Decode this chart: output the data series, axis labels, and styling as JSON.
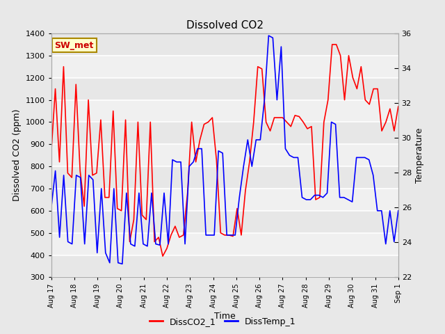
{
  "title": "Dissolved CO2",
  "xlabel": "Time",
  "ylabel_left": "Dissolved CO2 (ppm)",
  "ylabel_right": "Temperature",
  "ylim_left": [
    300,
    1400
  ],
  "ylim_right": [
    22,
    36
  ],
  "bg_color": "#e8e8e8",
  "plot_bg_color": "#f0f0f0",
  "legend_label_red": "DissCO2_1",
  "legend_label_blue": "DissTemp_1",
  "annotation_text": "SW_met",
  "annotation_bg": "#ffffcc",
  "annotation_border": "#aa8800",
  "annotation_text_color": "#cc0000",
  "x_tick_labels": [
    "Aug 17",
    "Aug 18",
    "Aug 19",
    "Aug 20",
    "Aug 21",
    "Aug 22",
    "Aug 23",
    "Aug 24",
    "Aug 25",
    "Aug 26",
    "Aug 27",
    "Aug 28",
    "Aug 29",
    "Aug 30",
    "Aug 31",
    "Sep 1"
  ],
  "red_y": [
    860,
    1150,
    820,
    1250,
    770,
    750,
    1170,
    780,
    620,
    1100,
    760,
    770,
    1010,
    660,
    660,
    1050,
    610,
    600,
    1010,
    460,
    560,
    1000,
    580,
    560,
    1000,
    460,
    480,
    395,
    430,
    490,
    530,
    480,
    490,
    680,
    1000,
    820,
    920,
    990,
    1000,
    1020,
    830,
    500,
    490,
    490,
    485,
    610,
    490,
    690,
    820,
    1000,
    1250,
    1240,
    1000,
    960,
    1020,
    1020,
    1020,
    1000,
    980,
    1030,
    1025,
    1000,
    970,
    980,
    650,
    660,
    1000,
    1100,
    1350,
    1350,
    1300,
    1100,
    1300,
    1200,
    1150,
    1250,
    1100,
    1080,
    1150,
    1150,
    960,
    1000,
    1060,
    960,
    1070
  ],
  "blue_y": [
    610,
    780,
    480,
    760,
    460,
    450,
    760,
    750,
    450,
    760,
    740,
    410,
    700,
    410,
    365,
    700,
    365,
    360,
    680,
    450,
    440,
    680,
    450,
    440,
    680,
    450,
    445,
    680,
    450,
    830,
    820,
    820,
    450,
    800,
    820,
    880,
    880,
    490,
    490,
    490,
    870,
    860,
    490,
    490,
    490,
    660,
    800,
    920,
    800,
    920,
    920,
    1100,
    1390,
    1380,
    1100,
    1340,
    880,
    850,
    840,
    840,
    660,
    650,
    650,
    670,
    670,
    660,
    680,
    1000,
    990,
    660,
    660,
    650,
    640,
    840,
    840,
    840,
    830,
    760,
    600,
    600,
    450,
    600,
    460,
    600
  ],
  "yticks_left": [
    300,
    400,
    500,
    600,
    700,
    800,
    900,
    1000,
    1100,
    1200,
    1300,
    1400
  ],
  "yticks_right_labels": [
    22,
    24,
    26,
    28,
    30,
    32,
    34,
    36
  ]
}
